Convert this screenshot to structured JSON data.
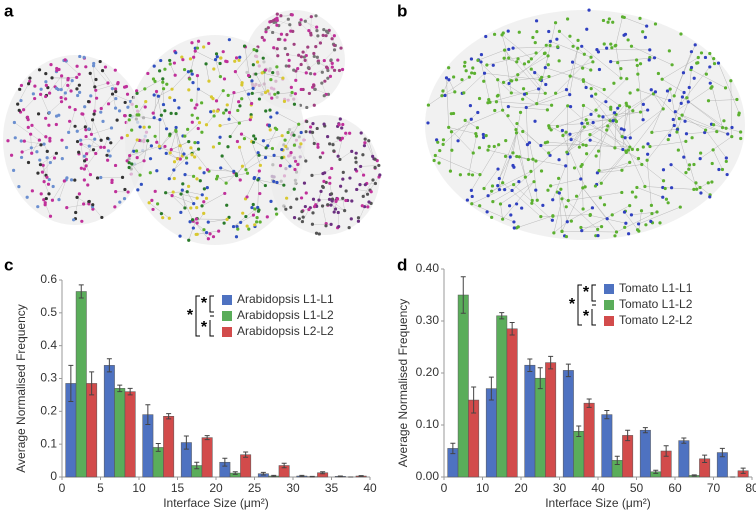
{
  "panel_labels": [
    "a",
    "b",
    "c",
    "d"
  ],
  "chart_data": [
    {
      "type": "bar",
      "xlabel": "Interface Size (μm²)",
      "ylabel": "Average Normalised Frequency",
      "x": [
        2.5,
        7.5,
        12.5,
        17.5,
        22.5,
        27.5,
        32.5,
        37.5
      ],
      "xlim": [
        0,
        40
      ],
      "xticks": [
        0,
        5,
        10,
        15,
        20,
        25,
        30,
        35,
        40
      ],
      "ylim": [
        0,
        0.6
      ],
      "yticks": [
        0,
        0.1,
        0.2,
        0.3,
        0.4,
        0.5,
        0.6
      ],
      "legend": "upper right",
      "annotations": [
        "*",
        "*",
        "*"
      ],
      "series": [
        {
          "name": "Arabidopsis L1-L1",
          "color": "#4e72c1",
          "values": [
            0.285,
            0.34,
            0.19,
            0.105,
            0.045,
            0.01,
            0.003,
            0.002
          ],
          "errors": [
            0.055,
            0.02,
            0.03,
            0.02,
            0.012,
            0.004,
            0.002,
            0.001
          ]
        },
        {
          "name": "Arabidopsis L1-L2",
          "color": "#5aad5a",
          "values": [
            0.565,
            0.27,
            0.09,
            0.035,
            0.012,
            0.003,
            0.001,
            0
          ],
          "errors": [
            0.02,
            0.01,
            0.012,
            0.01,
            0.004,
            0.002,
            0.001,
            0
          ]
        },
        {
          "name": "Arabidopsis L2-L2",
          "color": "#d24b4b",
          "values": [
            0.285,
            0.26,
            0.185,
            0.12,
            0.068,
            0.035,
            0.013,
            0.003
          ],
          "errors": [
            0.035,
            0.01,
            0.008,
            0.006,
            0.008,
            0.007,
            0.003,
            0.001
          ]
        }
      ]
    },
    {
      "type": "bar",
      "xlabel": "Interface Size (μm²)",
      "ylabel": "Average Normalised Frequency",
      "x": [
        5,
        15,
        25,
        35,
        45,
        55,
        65,
        75
      ],
      "xlim": [
        0,
        80
      ],
      "xticks": [
        0,
        10,
        20,
        30,
        40,
        50,
        60,
        70,
        80
      ],
      "ylim": [
        0,
        0.4
      ],
      "yticks": [
        {
          "value": 0,
          "label": "0.00"
        },
        {
          "value": 0.1,
          "label": "0.10"
        },
        {
          "value": 0.2,
          "label": "0.20"
        },
        {
          "value": 0.3,
          "label": "0.30"
        },
        {
          "value": 0.4,
          "label": "0.40"
        }
      ],
      "legend": "upper right",
      "annotations": [
        "*",
        "*",
        "*"
      ],
      "series": [
        {
          "name": "Tomato L1-L1",
          "color": "#4e72c1",
          "values": [
            0.055,
            0.17,
            0.215,
            0.205,
            0.12,
            0.09,
            0.07,
            0.047
          ],
          "errors": [
            0.01,
            0.022,
            0.012,
            0.012,
            0.008,
            0.005,
            0.005,
            0.008
          ]
        },
        {
          "name": "Tomato L1-L2",
          "color": "#5aad5a",
          "values": [
            0.35,
            0.31,
            0.19,
            0.088,
            0.032,
            0.01,
            0.003,
            0
          ],
          "errors": [
            0.035,
            0.006,
            0.02,
            0.01,
            0.008,
            0.003,
            0.001,
            0
          ]
        },
        {
          "name": "Tomato L2-L2",
          "color": "#d24b4b",
          "values": [
            0.148,
            0.285,
            0.22,
            0.142,
            0.08,
            0.05,
            0.035,
            0.012
          ],
          "errors": [
            0.025,
            0.012,
            0.012,
            0.008,
            0.01,
            0.01,
            0.007,
            0.005
          ]
        }
      ]
    }
  ]
}
